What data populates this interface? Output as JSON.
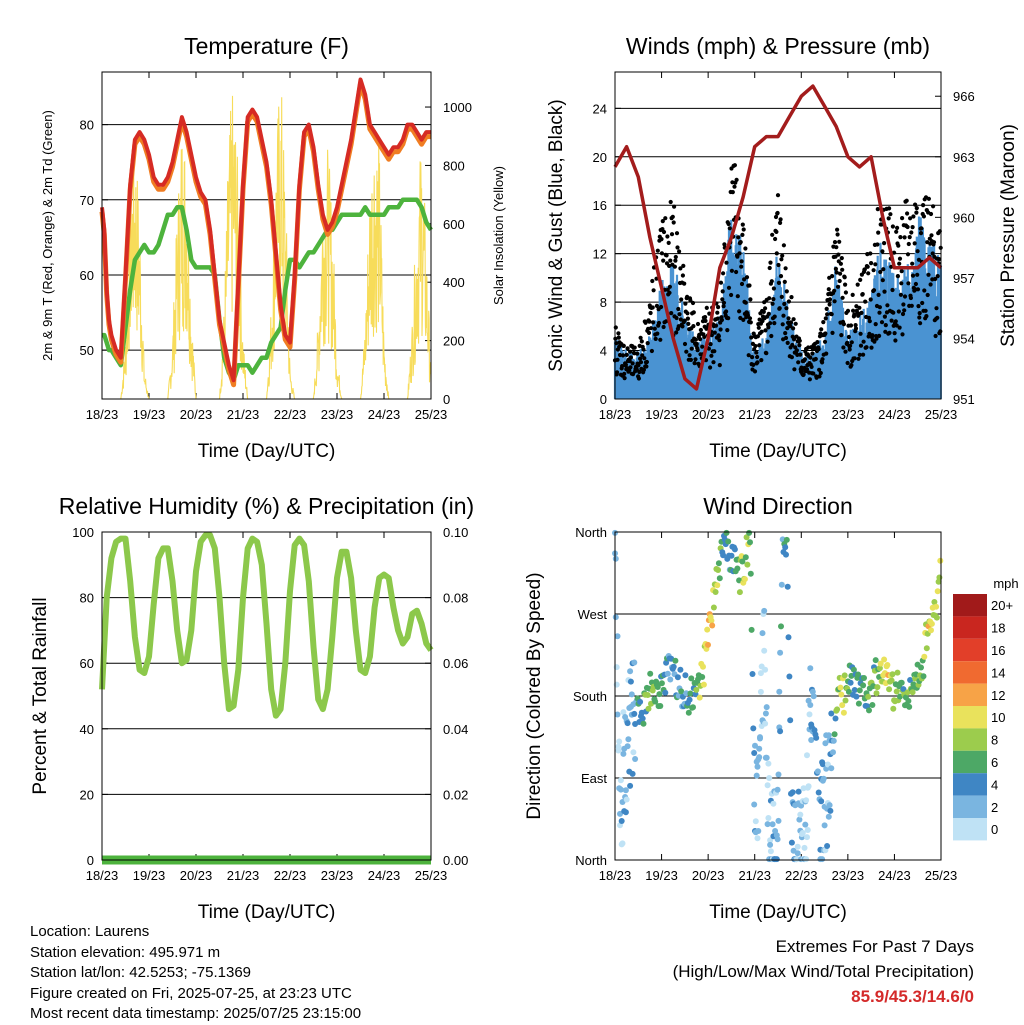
{
  "x_ticks": [
    "18/23",
    "19/23",
    "20/23",
    "21/23",
    "22/23",
    "23/23",
    "24/23",
    "25/23"
  ],
  "x_label": "Time (Day/UTC)",
  "info": {
    "location": "Location: Laurens",
    "elevation": "Station elevation: 495.971 m",
    "latlon": "Station lat/lon: 42.5253; -75.1369",
    "created": "Figure created on Fri, 2025-07-25, at 23:23 UTC",
    "recent": "Most recent data timestamp: 2025/07/25 23:15:00"
  },
  "extremes": {
    "line1": "Extremes For Past 7 Days",
    "line2": "(High/Low/Max Wind/Total Precipitation)",
    "values": "85.9/45.3/14.6/0"
  },
  "colors": {
    "temp_2m": "#d62b24",
    "temp_9m": "#f07d22",
    "dewpoint": "#4db33d",
    "insolation": "#f7dc5a",
    "wind": "#4a93d2",
    "gust": "#000000",
    "pressure": "#a31c1c",
    "rh": "#8cc84b",
    "precip": "#4db33d"
  },
  "chart_data": [
    {
      "type": "line",
      "title": "Temperature (F)",
      "xlabel": "Time (Day/UTC)",
      "ylabel": "2m & 9m T (Red, Orange) & 2m Td (Green)",
      "ylabel_right": "Solar Insolation (Yellow)",
      "ylim": [
        43.5,
        87
      ],
      "yticks": [
        50,
        60,
        70,
        80
      ],
      "ylim_right": [
        0,
        1120
      ],
      "yticks_right": [
        0,
        200,
        400,
        600,
        800,
        1000
      ],
      "x": [
        0,
        0.05,
        0.1,
        0.15,
        0.2,
        0.3,
        0.4,
        0.5,
        0.6,
        0.7,
        0.8,
        0.9,
        1.0,
        1.1,
        1.2,
        1.3,
        1.4,
        1.5,
        1.6,
        1.7,
        1.8,
        1.9,
        2.0,
        2.1,
        2.2,
        2.3,
        2.4,
        2.5,
        2.6,
        2.7,
        2.8,
        2.9,
        3.0,
        3.1,
        3.2,
        3.3,
        3.4,
        3.5,
        3.6,
        3.7,
        3.8,
        3.9,
        4.0,
        4.1,
        4.2,
        4.3,
        4.4,
        4.5,
        4.6,
        4.7,
        4.8,
        4.9,
        5.0,
        5.1,
        5.2,
        5.3,
        5.4,
        5.5,
        5.6,
        5.7,
        5.8,
        5.9,
        6.0,
        6.1,
        6.2,
        6.3,
        6.4,
        6.5,
        6.6,
        6.7,
        6.8,
        6.9,
        7.0
      ],
      "series": [
        {
          "name": "2m T",
          "values": [
            69,
            66,
            58,
            54,
            52,
            50,
            49,
            60,
            72,
            78,
            79,
            78,
            76,
            73,
            72,
            72,
            73,
            75,
            78,
            81,
            79,
            76,
            73,
            71,
            70,
            66,
            60,
            54,
            51,
            48,
            46,
            59,
            72,
            81,
            82,
            81,
            78,
            75,
            70,
            63,
            56,
            52,
            51,
            60,
            72,
            79,
            80,
            77,
            72,
            68,
            66,
            67,
            69,
            72,
            75,
            78,
            82,
            86,
            84,
            80,
            79,
            78,
            77,
            76,
            77,
            77,
            78,
            80,
            80,
            79,
            78,
            79,
            79
          ]
        },
        {
          "name": "2m Td",
          "values": [
            52,
            52,
            51,
            50,
            50,
            49,
            48,
            53,
            58,
            62,
            63,
            64,
            63,
            63,
            64,
            66,
            68,
            68,
            69,
            69,
            66,
            62,
            61,
            61,
            61,
            61,
            60,
            54,
            49,
            47,
            46,
            48,
            48,
            48,
            47,
            48,
            49,
            49,
            51,
            52,
            53,
            58,
            62,
            62,
            61,
            62,
            63,
            63,
            64,
            65,
            66,
            66,
            67,
            68,
            68,
            68,
            68,
            68,
            69,
            68,
            68,
            68,
            68,
            69,
            69,
            69,
            70,
            70,
            70,
            70,
            69,
            67,
            66
          ]
        },
        {
          "name": "Solar Insolation",
          "values": [
            0,
            0,
            0,
            0,
            0,
            0,
            0,
            200,
            700,
            850,
            600,
            100,
            0,
            0,
            0,
            0,
            0,
            200,
            600,
            900,
            800,
            300,
            0,
            0,
            0,
            0,
            0,
            0,
            300,
            850,
            1000,
            700,
            200,
            0,
            0,
            0,
            0,
            0,
            300,
            800,
            1050,
            700,
            100,
            0,
            0,
            0,
            0,
            0,
            250,
            700,
            800,
            600,
            150,
            0,
            0,
            0,
            0,
            0,
            250,
            700,
            900,
            800,
            200,
            0,
            0,
            0,
            0,
            0,
            250,
            600,
            850,
            500,
            100
          ]
        }
      ]
    },
    {
      "type": "scatter",
      "title": "Winds (mph) & Pressure (mb)",
      "xlabel": "Time (Day/UTC)",
      "ylabel": "Sonic Wind & Gust (Blue, Black)",
      "ylabel_right": "Station Pressure (Maroon)",
      "ylim": [
        0,
        27
      ],
      "yticks": [
        0,
        4,
        8,
        12,
        16,
        20,
        24
      ],
      "ylim_right": [
        951,
        967.2
      ],
      "yticks_right": [
        951,
        954,
        957,
        960,
        963,
        966
      ],
      "x": [
        0,
        0.25,
        0.5,
        0.75,
        1.0,
        1.25,
        1.5,
        1.75,
        2.0,
        2.25,
        2.5,
        2.75,
        3.0,
        3.25,
        3.5,
        3.75,
        4.0,
        4.25,
        4.5,
        4.75,
        5.0,
        5.25,
        5.5,
        5.75,
        6.0,
        6.25,
        6.5,
        6.75,
        7.0
      ],
      "series": [
        {
          "name": "Wind",
          "values": [
            3,
            2,
            2,
            3,
            6,
            7,
            5,
            3,
            3,
            4,
            10,
            8,
            2,
            3,
            8,
            4,
            2,
            2,
            3,
            7,
            3,
            4,
            5,
            9,
            6,
            7,
            10,
            9,
            7
          ]
        },
        {
          "name": "Gust",
          "values": [
            6,
            4,
            4,
            8,
            14,
            15,
            10,
            6,
            7,
            8,
            20,
            14,
            5,
            8,
            17,
            9,
            4,
            4,
            6,
            15,
            7,
            9,
            12,
            16,
            13,
            15,
            17,
            15,
            14
          ]
        },
        {
          "name": "Pressure",
          "values": [
            962.5,
            963.5,
            962,
            959,
            956.5,
            954,
            952,
            951.5,
            954,
            957.5,
            959,
            961,
            963.5,
            964,
            964,
            965,
            966,
            966.5,
            965.5,
            964.5,
            963,
            962.5,
            963,
            960,
            957.5,
            957.5,
            957.5,
            958,
            957.5
          ]
        }
      ]
    },
    {
      "type": "line",
      "title": "Relative Humidity (%) & Precipitation (in)",
      "xlabel": "Time (Day/UTC)",
      "ylabel": "Percent & Total Rainfall",
      "ylim": [
        0,
        100
      ],
      "yticks": [
        0,
        20,
        40,
        60,
        80,
        100
      ],
      "ylim_right": [
        0,
        0.1
      ],
      "yticks_right": [
        "0.00",
        "0.02",
        "0.04",
        "0.06",
        "0.08",
        "0.10"
      ],
      "x": [
        0,
        0.1,
        0.2,
        0.3,
        0.4,
        0.5,
        0.6,
        0.7,
        0.8,
        0.9,
        1.0,
        1.1,
        1.2,
        1.3,
        1.4,
        1.5,
        1.6,
        1.7,
        1.8,
        1.9,
        2.0,
        2.1,
        2.2,
        2.3,
        2.4,
        2.5,
        2.6,
        2.7,
        2.8,
        2.9,
        3.0,
        3.1,
        3.2,
        3.3,
        3.4,
        3.5,
        3.6,
        3.7,
        3.8,
        3.9,
        4.0,
        4.1,
        4.2,
        4.3,
        4.4,
        4.5,
        4.6,
        4.7,
        4.8,
        4.9,
        5.0,
        5.1,
        5.2,
        5.3,
        5.4,
        5.5,
        5.6,
        5.7,
        5.8,
        5.9,
        6.0,
        6.1,
        6.2,
        6.3,
        6.4,
        6.5,
        6.6,
        6.7,
        6.8,
        6.9,
        7.0
      ],
      "series": [
        {
          "name": "Relative Humidity",
          "values": [
            52,
            80,
            92,
            97,
            98,
            98,
            85,
            68,
            58,
            57,
            62,
            78,
            92,
            95,
            95,
            85,
            70,
            60,
            61,
            70,
            88,
            97,
            99,
            99,
            95,
            80,
            60,
            46,
            47,
            58,
            80,
            95,
            98,
            97,
            90,
            72,
            52,
            44,
            46,
            60,
            82,
            96,
            98,
            96,
            85,
            65,
            49,
            46,
            52,
            68,
            86,
            94,
            94,
            86,
            70,
            58,
            57,
            62,
            77,
            86,
            87,
            86,
            77,
            70,
            66,
            68,
            75,
            76,
            72,
            66,
            64
          ]
        },
        {
          "name": "Total Precipitation",
          "values": [
            0,
            0,
            0,
            0,
            0,
            0,
            0,
            0,
            0,
            0,
            0,
            0,
            0,
            0,
            0,
            0,
            0,
            0,
            0,
            0,
            0,
            0,
            0,
            0,
            0,
            0,
            0,
            0,
            0,
            0,
            0,
            0,
            0,
            0,
            0,
            0,
            0,
            0,
            0,
            0,
            0,
            0,
            0,
            0,
            0,
            0,
            0,
            0,
            0,
            0,
            0,
            0,
            0,
            0,
            0,
            0,
            0,
            0,
            0,
            0,
            0,
            0,
            0,
            0,
            0,
            0,
            0,
            0,
            0,
            0,
            0
          ]
        }
      ]
    },
    {
      "type": "scatter",
      "title": "Wind Direction",
      "xlabel": "Time (Day/UTC)",
      "ylabel": "Direction (Colored By Speed)",
      "ylim": [
        0,
        360
      ],
      "yticks": [
        "North",
        "East",
        "South",
        "West",
        "North"
      ],
      "colorbar_title": "mph",
      "colorbar_labels": [
        "20+",
        "18",
        "16",
        "14",
        "12",
        "10",
        "8",
        "6",
        "4",
        "2",
        "0"
      ],
      "colorbar_colors": [
        "#a11a1a",
        "#c9261f",
        "#e23f29",
        "#f06a30",
        "#f7a347",
        "#e9e25c",
        "#9ccc4d",
        "#4da866",
        "#3f86c4",
        "#7ab5e0",
        "#bfe2f5"
      ],
      "x": [
        0,
        0.1,
        0.2,
        0.3,
        0.4,
        0.5,
        0.6,
        0.7,
        0.8,
        0.9,
        1.0,
        1.1,
        1.2,
        1.3,
        1.4,
        1.5,
        1.6,
        1.7,
        1.8,
        1.9,
        2.0,
        2.1,
        2.2,
        2.3,
        2.4,
        2.5,
        2.6,
        2.7,
        2.8,
        2.9,
        3.0,
        3.1,
        3.2,
        3.3,
        3.4,
        3.5,
        3.6,
        3.7,
        3.8,
        3.9,
        4.0,
        4.1,
        4.2,
        4.3,
        4.4,
        4.5,
        4.6,
        4.7,
        4.8,
        4.9,
        5.0,
        5.1,
        5.2,
        5.3,
        5.4,
        5.5,
        5.6,
        5.7,
        5.8,
        5.9,
        6.0,
        6.1,
        6.2,
        6.3,
        6.4,
        6.5,
        6.6,
        6.7,
        6.8,
        6.9,
        7.0
      ],
      "series": [
        {
          "name": "Direction",
          "values": [
            355,
            50,
            110,
            140,
            150,
            160,
            165,
            180,
            190,
            185,
            190,
            200,
            210,
            200,
            190,
            185,
            180,
            180,
            190,
            210,
            240,
            280,
            310,
            340,
            350,
            330,
            320,
            310,
            330,
            350,
            80,
            100,
            220,
            30,
            10,
            60,
            350,
            345,
            20,
            5,
            10,
            30,
            180,
            150,
            40,
            60,
            100,
            140,
            200,
            180,
            190,
            200,
            190,
            180,
            180,
            185,
            200,
            210,
            200,
            190,
            180,
            190,
            180,
            185,
            190,
            200,
            210,
            250,
            260,
            280,
            330
          ]
        },
        {
          "name": "Speed",
          "values": [
            1,
            1,
            2,
            2,
            2,
            4,
            5,
            6,
            7,
            6,
            5,
            4,
            3,
            4,
            4,
            3,
            5,
            6,
            7,
            9,
            12,
            10,
            8,
            6,
            5,
            4,
            4,
            8,
            9,
            7,
            2,
            1,
            1,
            1,
            2,
            2,
            4,
            5,
            3,
            2,
            1,
            1,
            2,
            4,
            3,
            2,
            2,
            4,
            8,
            9,
            6,
            5,
            5,
            5,
            6,
            6,
            7,
            9,
            10,
            10,
            8,
            7,
            6,
            6,
            7,
            7,
            8,
            9,
            10,
            9,
            8
          ]
        }
      ]
    }
  ]
}
